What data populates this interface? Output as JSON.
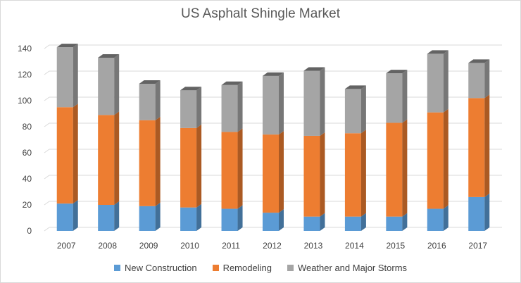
{
  "chart_data": {
    "type": "bar",
    "stacked": true,
    "title": "US Asphalt Shingle Market",
    "categories": [
      "2007",
      "2008",
      "2009",
      "2010",
      "2011",
      "2012",
      "2013",
      "2014",
      "2015",
      "2016",
      "2017"
    ],
    "series": [
      {
        "name": "New Construction",
        "color": "#5b9bd5",
        "values": [
          21,
          20,
          19,
          18,
          17,
          14,
          11,
          11,
          11,
          17,
          26
        ]
      },
      {
        "name": "Remodeling",
        "color": "#ed7d31",
        "values": [
          74,
          69,
          66,
          61,
          59,
          60,
          62,
          64,
          72,
          74,
          76
        ]
      },
      {
        "name": "Weather and Major Storms",
        "color": "#a5a5a5",
        "values": [
          46,
          44,
          28,
          29,
          36,
          45,
          50,
          34,
          38,
          45,
          27
        ]
      }
    ],
    "ylim": [
      0,
      140
    ],
    "yticks": [
      0,
      20,
      40,
      60,
      80,
      100,
      120,
      140
    ],
    "grid": true,
    "legend": "bottom",
    "style": "3d-column"
  }
}
